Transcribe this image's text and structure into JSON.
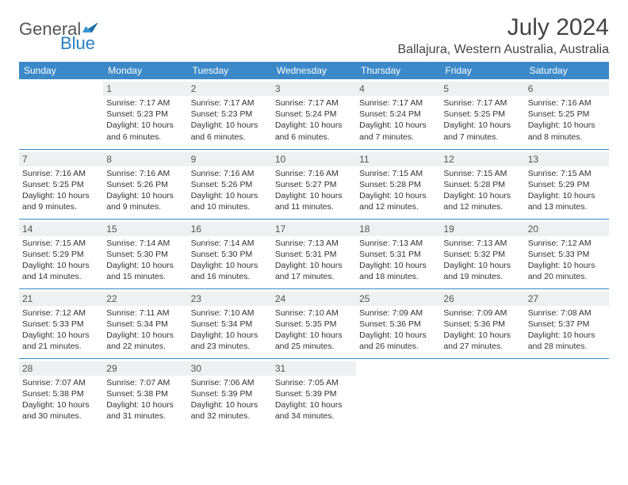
{
  "brand": {
    "name1": "General",
    "name2": "Blue"
  },
  "title": "July 2024",
  "location": "Ballajura, Western Australia, Australia",
  "colors": {
    "header_bg": "#3b89c9",
    "header_fg": "#ffffff",
    "daynum_bg": "#eef0f1",
    "daynum_fg": "#555555",
    "text": "#333333",
    "rule": "#3b89c9",
    "logo_gray": "#555555",
    "logo_blue": "#2a7fbf"
  },
  "weekdays": [
    "Sunday",
    "Monday",
    "Tuesday",
    "Wednesday",
    "Thursday",
    "Friday",
    "Saturday"
  ],
  "weeks": [
    [
      null,
      {
        "n": "1",
        "sr": "7:17 AM",
        "ss": "5:23 PM",
        "dl": "10 hours and 6 minutes."
      },
      {
        "n": "2",
        "sr": "7:17 AM",
        "ss": "5:23 PM",
        "dl": "10 hours and 6 minutes."
      },
      {
        "n": "3",
        "sr": "7:17 AM",
        "ss": "5:24 PM",
        "dl": "10 hours and 6 minutes."
      },
      {
        "n": "4",
        "sr": "7:17 AM",
        "ss": "5:24 PM",
        "dl": "10 hours and 7 minutes."
      },
      {
        "n": "5",
        "sr": "7:17 AM",
        "ss": "5:25 PM",
        "dl": "10 hours and 7 minutes."
      },
      {
        "n": "6",
        "sr": "7:16 AM",
        "ss": "5:25 PM",
        "dl": "10 hours and 8 minutes."
      }
    ],
    [
      {
        "n": "7",
        "sr": "7:16 AM",
        "ss": "5:25 PM",
        "dl": "10 hours and 9 minutes."
      },
      {
        "n": "8",
        "sr": "7:16 AM",
        "ss": "5:26 PM",
        "dl": "10 hours and 9 minutes."
      },
      {
        "n": "9",
        "sr": "7:16 AM",
        "ss": "5:26 PM",
        "dl": "10 hours and 10 minutes."
      },
      {
        "n": "10",
        "sr": "7:16 AM",
        "ss": "5:27 PM",
        "dl": "10 hours and 11 minutes."
      },
      {
        "n": "11",
        "sr": "7:15 AM",
        "ss": "5:28 PM",
        "dl": "10 hours and 12 minutes."
      },
      {
        "n": "12",
        "sr": "7:15 AM",
        "ss": "5:28 PM",
        "dl": "10 hours and 12 minutes."
      },
      {
        "n": "13",
        "sr": "7:15 AM",
        "ss": "5:29 PM",
        "dl": "10 hours and 13 minutes."
      }
    ],
    [
      {
        "n": "14",
        "sr": "7:15 AM",
        "ss": "5:29 PM",
        "dl": "10 hours and 14 minutes."
      },
      {
        "n": "15",
        "sr": "7:14 AM",
        "ss": "5:30 PM",
        "dl": "10 hours and 15 minutes."
      },
      {
        "n": "16",
        "sr": "7:14 AM",
        "ss": "5:30 PM",
        "dl": "10 hours and 16 minutes."
      },
      {
        "n": "17",
        "sr": "7:13 AM",
        "ss": "5:31 PM",
        "dl": "10 hours and 17 minutes."
      },
      {
        "n": "18",
        "sr": "7:13 AM",
        "ss": "5:31 PM",
        "dl": "10 hours and 18 minutes."
      },
      {
        "n": "19",
        "sr": "7:13 AM",
        "ss": "5:32 PM",
        "dl": "10 hours and 19 minutes."
      },
      {
        "n": "20",
        "sr": "7:12 AM",
        "ss": "5:33 PM",
        "dl": "10 hours and 20 minutes."
      }
    ],
    [
      {
        "n": "21",
        "sr": "7:12 AM",
        "ss": "5:33 PM",
        "dl": "10 hours and 21 minutes."
      },
      {
        "n": "22",
        "sr": "7:11 AM",
        "ss": "5:34 PM",
        "dl": "10 hours and 22 minutes."
      },
      {
        "n": "23",
        "sr": "7:10 AM",
        "ss": "5:34 PM",
        "dl": "10 hours and 23 minutes."
      },
      {
        "n": "24",
        "sr": "7:10 AM",
        "ss": "5:35 PM",
        "dl": "10 hours and 25 minutes."
      },
      {
        "n": "25",
        "sr": "7:09 AM",
        "ss": "5:36 PM",
        "dl": "10 hours and 26 minutes."
      },
      {
        "n": "26",
        "sr": "7:09 AM",
        "ss": "5:36 PM",
        "dl": "10 hours and 27 minutes."
      },
      {
        "n": "27",
        "sr": "7:08 AM",
        "ss": "5:37 PM",
        "dl": "10 hours and 28 minutes."
      }
    ],
    [
      {
        "n": "28",
        "sr": "7:07 AM",
        "ss": "5:38 PM",
        "dl": "10 hours and 30 minutes."
      },
      {
        "n": "29",
        "sr": "7:07 AM",
        "ss": "5:38 PM",
        "dl": "10 hours and 31 minutes."
      },
      {
        "n": "30",
        "sr": "7:06 AM",
        "ss": "5:39 PM",
        "dl": "10 hours and 32 minutes."
      },
      {
        "n": "31",
        "sr": "7:05 AM",
        "ss": "5:39 PM",
        "dl": "10 hours and 34 minutes."
      },
      null,
      null,
      null
    ]
  ],
  "labels": {
    "sunrise": "Sunrise:",
    "sunset": "Sunset:",
    "daylight": "Daylight:"
  }
}
